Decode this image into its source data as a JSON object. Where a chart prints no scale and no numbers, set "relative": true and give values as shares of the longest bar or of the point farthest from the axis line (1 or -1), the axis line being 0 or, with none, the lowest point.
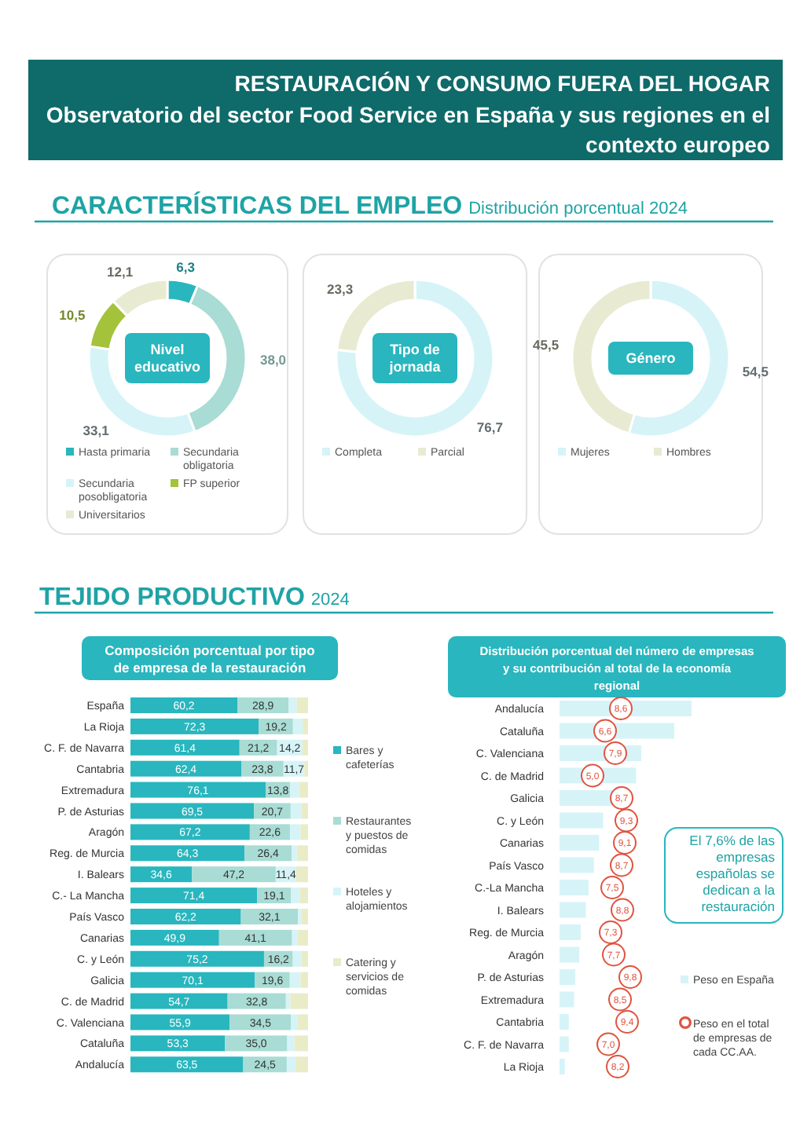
{
  "chart_data": [
    {
      "type": "donut",
      "title": "Nivel educativo",
      "categories": [
        "Hasta primaria",
        "Secundaria obligatoria",
        "Secundaria posobligatoria",
        "FP superior",
        "Universitarios"
      ],
      "values": [
        6.3,
        38.0,
        33.1,
        10.5,
        12.1
      ],
      "value_labels": [
        "6,3",
        "38,0",
        "33,1",
        "10,5",
        "12,1"
      ],
      "colors": [
        "#29b6be",
        "#a8dcd4",
        "#d6f4f8",
        "#a4c23a",
        "#e8ebd2"
      ],
      "legend": "bottom",
      "annotations": [
        "RESTAURACIÓN Y CONSUMO FUERA DEL HOGAR",
        "Observatorio del sector Food Service en España y sus regiones en el contexto europeo",
        "CARACTERÍSTICAS DEL EMPLEO",
        "Distribución porcentual 2024"
      ]
    },
    {
      "type": "donut",
      "title": "Tipo de jornada",
      "categories": [
        "Completa",
        "Parcial"
      ],
      "values": [
        76.7,
        23.3
      ],
      "value_labels": [
        "76,7",
        "23,3"
      ],
      "colors": [
        "#d6f4f8",
        "#e8ebd2"
      ],
      "legend": "bottom"
    },
    {
      "type": "donut",
      "title": "Género",
      "categories": [
        "Mujeres",
        "Hombres"
      ],
      "values": [
        54.5,
        45.5
      ],
      "value_labels": [
        "54,5",
        "45,5"
      ],
      "colors": [
        "#d6f4f8",
        "#e8ebd2"
      ],
      "legend": "bottom"
    },
    {
      "type": "bar",
      "orientation": "horizontal",
      "stacked": true,
      "title": "Composición porcentual por tipo de empresa de la restauración",
      "legend": "right",
      "annotations": [
        "TEJIDO PRODUCTIVO",
        "2024"
      ],
      "categories": [
        "España",
        "La Rioja",
        "C. F. de Navarra",
        "Cantabria",
        "Extremadura",
        "P. de Asturias",
        "Aragón",
        "Reg. de Murcia",
        "I. Balears",
        "C.- La Mancha",
        "País Vasco",
        "Canarias",
        "C. y León",
        "Galicia",
        "C. de Madrid",
        "C. Valenciana",
        "Cataluña",
        "Andalucía"
      ],
      "series": [
        {
          "name": "Bares y cafeterías",
          "color": "#29b6be",
          "values": [
            60.2,
            72.3,
            61.4,
            62.4,
            76.1,
            69.5,
            67.2,
            64.3,
            34.6,
            71.4,
            62.2,
            49.9,
            75.2,
            70.1,
            54.7,
            55.9,
            53.3,
            63.5
          ],
          "value_labels": [
            "60,2",
            "72,3",
            "61,4",
            "62,4",
            "76,1",
            "69,5",
            "67,2",
            "64,3",
            "34,6",
            "71,4",
            "62,2",
            "49,9",
            "75,2",
            "70,1",
            "54,7",
            "55,9",
            "53,3",
            "63,5"
          ]
        },
        {
          "name": "Restaurantes y puestos de comidas",
          "color": "#a8dcd4",
          "values": [
            28.9,
            19.2,
            21.2,
            23.8,
            13.8,
            20.7,
            22.6,
            26.4,
            47.2,
            19.1,
            32.1,
            41.1,
            16.2,
            19.6,
            32.8,
            34.5,
            35.0,
            24.5
          ],
          "value_labels": [
            "28,9",
            "19,2",
            "21,2",
            "23,8",
            "13,8",
            "20,7",
            "22,6",
            "26,4",
            "47,2",
            "19,1",
            "32,1",
            "41,1",
            "16,2",
            "19,6",
            "32,8",
            "34,5",
            "35,0",
            "24,5"
          ]
        },
        {
          "name": "Hoteles y alojamientos",
          "color": "#d6f4f8",
          "values": [
            4.5,
            5.5,
            14.2,
            11.7,
            5.0,
            6.0,
            6.0,
            3.0,
            11.4,
            5.0,
            2.0,
            3.0,
            5.0,
            6.0,
            2.5,
            3.5,
            4.0,
            5.0
          ],
          "value_labels": [
            null,
            null,
            "14,2",
            "11,7",
            null,
            null,
            null,
            null,
            "11,4",
            null,
            null,
            null,
            null,
            null,
            null,
            null,
            null,
            null
          ]
        },
        {
          "name": "Catering y servicios de comidas",
          "color": "#e9ecc7",
          "values": [
            6.4,
            3.0,
            3.2,
            2.1,
            5.1,
            3.8,
            4.2,
            6.3,
            6.8,
            4.5,
            3.7,
            6.0,
            3.6,
            4.3,
            10.0,
            6.1,
            7.7,
            7.0
          ]
        }
      ]
    },
    {
      "type": "bar",
      "orientation": "horizontal",
      "relative": true,
      "title": "Distribución porcentual del número de empresas y su contribución al total de la economía regional",
      "legend": "bottom right",
      "annotations": [
        "El 7,6% de las empresas españolas se dedican a la restauración"
      ],
      "categories": [
        "Andalucía",
        "Cataluña",
        "C. Valenciana",
        "C. de Madrid",
        "Galicia",
        "C. y León",
        "Canarias",
        "País Vasco",
        "C.-La Mancha",
        "I. Balears",
        "Reg. de Murcia",
        "Aragón",
        "P. de Asturias",
        "Extremadura",
        "Cantabria",
        "C. F. de Navarra",
        "La Rioja"
      ],
      "series": [
        {
          "name": "Peso en España",
          "color": "#d6f4f8",
          "values": [
            1,
            0.87,
            0.62,
            0.58,
            0.4,
            0.33,
            0.3,
            0.26,
            0.22,
            0.2,
            0.16,
            0.15,
            0.12,
            0.11,
            0.07,
            0.07,
            0.04
          ]
        }
      ]
    },
    {
      "type": "scatter",
      "orientation": "horizontal",
      "legend": "bottom right",
      "marker": "circle",
      "categories": [
        null,
        null,
        null,
        null,
        null,
        null,
        null,
        null,
        null,
        null,
        null,
        null,
        null,
        null,
        null,
        null,
        null
      ],
      "series": [
        {
          "name": "Peso en el total de empresas de cada CC.AA.",
          "color": "#e0533f",
          "values": [
            8.6,
            6.6,
            7.9,
            5.0,
            8.7,
            9.3,
            9.1,
            8.7,
            7.5,
            8.8,
            7.3,
            7.7,
            9.8,
            8.5,
            9.4,
            7.0,
            8.2
          ],
          "value_labels": [
            "8,6",
            "6,6",
            "7,9",
            "5,0",
            "8,7",
            "9,3",
            "9,1",
            "8,7",
            "7,5",
            "8,8",
            "7,3",
            "7,7",
            "9,8",
            "8,5",
            "9,4",
            "7,0",
            "8,2"
          ]
        }
      ]
    }
  ]
}
